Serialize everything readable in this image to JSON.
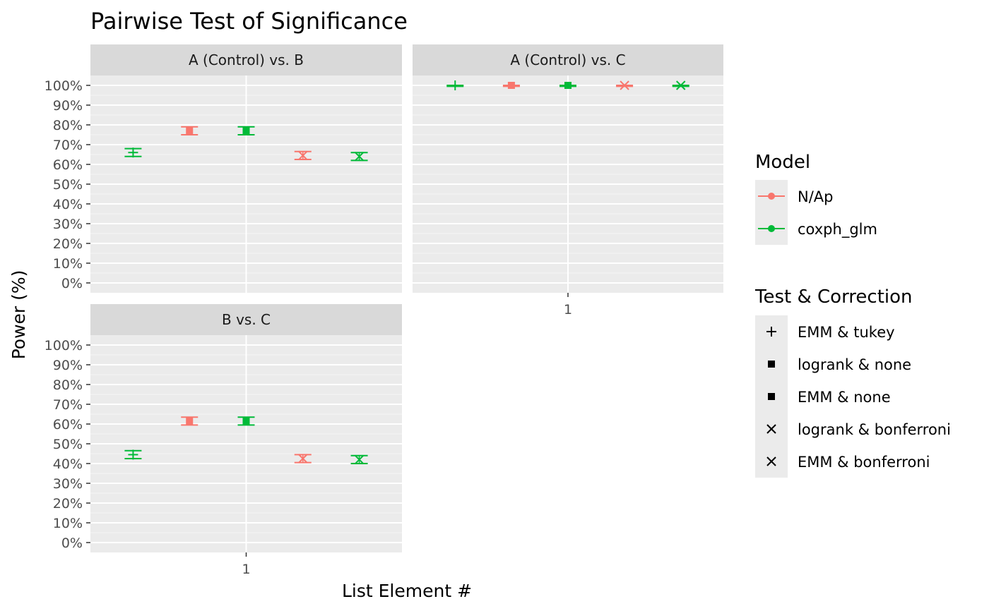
{
  "chart_data": {
    "type": "errorbar",
    "title": "Pairwise Test of Significance",
    "xlabel": "List Element #",
    "ylabel": "Power (%)",
    "x_categories": [
      "1"
    ],
    "y_ticks": [
      "0%",
      "10%",
      "20%",
      "30%",
      "40%",
      "50%",
      "60%",
      "70%",
      "80%",
      "90%",
      "100%"
    ],
    "ylim": [
      0,
      100
    ],
    "grid": true,
    "legend_position": "right",
    "legends": {
      "color": {
        "title": "Model",
        "entries": [
          {
            "label": "N/Ap",
            "color": "#F8766D"
          },
          {
            "label": "coxph_glm",
            "color": "#00BA38"
          }
        ]
      },
      "shape": {
        "title": "Test & Correction",
        "entries": [
          {
            "label": "EMM & tukey",
            "shape": "plus"
          },
          {
            "label": "logrank & none",
            "shape": "square"
          },
          {
            "label": "EMM & none",
            "shape": "square"
          },
          {
            "label": "logrank & bonferroni",
            "shape": "cross"
          },
          {
            "label": "EMM & bonferroni",
            "shape": "cross"
          }
        ]
      }
    },
    "panels": [
      {
        "strip": "A (Control) vs. B",
        "points": [
          {
            "test": "EMM & tukey",
            "model": "coxph_glm",
            "value": 66,
            "lower": 64,
            "upper": 68
          },
          {
            "test": "logrank & none",
            "model": "N/Ap",
            "value": 77,
            "lower": 75,
            "upper": 79
          },
          {
            "test": "EMM & none",
            "model": "coxph_glm",
            "value": 77,
            "lower": 75,
            "upper": 79
          },
          {
            "test": "logrank & bonferroni",
            "model": "N/Ap",
            "value": 64.5,
            "lower": 62.5,
            "upper": 66.5
          },
          {
            "test": "EMM & bonferroni",
            "model": "coxph_glm",
            "value": 64,
            "lower": 62,
            "upper": 66
          }
        ]
      },
      {
        "strip": "A (Control) vs. C",
        "points": [
          {
            "test": "EMM & tukey",
            "model": "coxph_glm",
            "value": 100,
            "lower": 99.5,
            "upper": 100
          },
          {
            "test": "logrank & none",
            "model": "N/Ap",
            "value": 100,
            "lower": 99.5,
            "upper": 100
          },
          {
            "test": "EMM & none",
            "model": "coxph_glm",
            "value": 100,
            "lower": 99.5,
            "upper": 100
          },
          {
            "test": "logrank & bonferroni",
            "model": "N/Ap",
            "value": 100,
            "lower": 99.5,
            "upper": 100
          },
          {
            "test": "EMM & bonferroni",
            "model": "coxph_glm",
            "value": 100,
            "lower": 99.5,
            "upper": 100
          }
        ]
      },
      {
        "strip": "B vs. C",
        "points": [
          {
            "test": "EMM & tukey",
            "model": "coxph_glm",
            "value": 44.5,
            "lower": 42.5,
            "upper": 46.5
          },
          {
            "test": "logrank & none",
            "model": "N/Ap",
            "value": 61.5,
            "lower": 59.5,
            "upper": 63.5
          },
          {
            "test": "EMM & none",
            "model": "coxph_glm",
            "value": 61.5,
            "lower": 59.5,
            "upper": 63.5
          },
          {
            "test": "logrank & bonferroni",
            "model": "N/Ap",
            "value": 42.5,
            "lower": 40.5,
            "upper": 44.5
          },
          {
            "test": "EMM & bonferroni",
            "model": "coxph_glm",
            "value": 42,
            "lower": 40,
            "upper": 44
          }
        ]
      }
    ]
  }
}
